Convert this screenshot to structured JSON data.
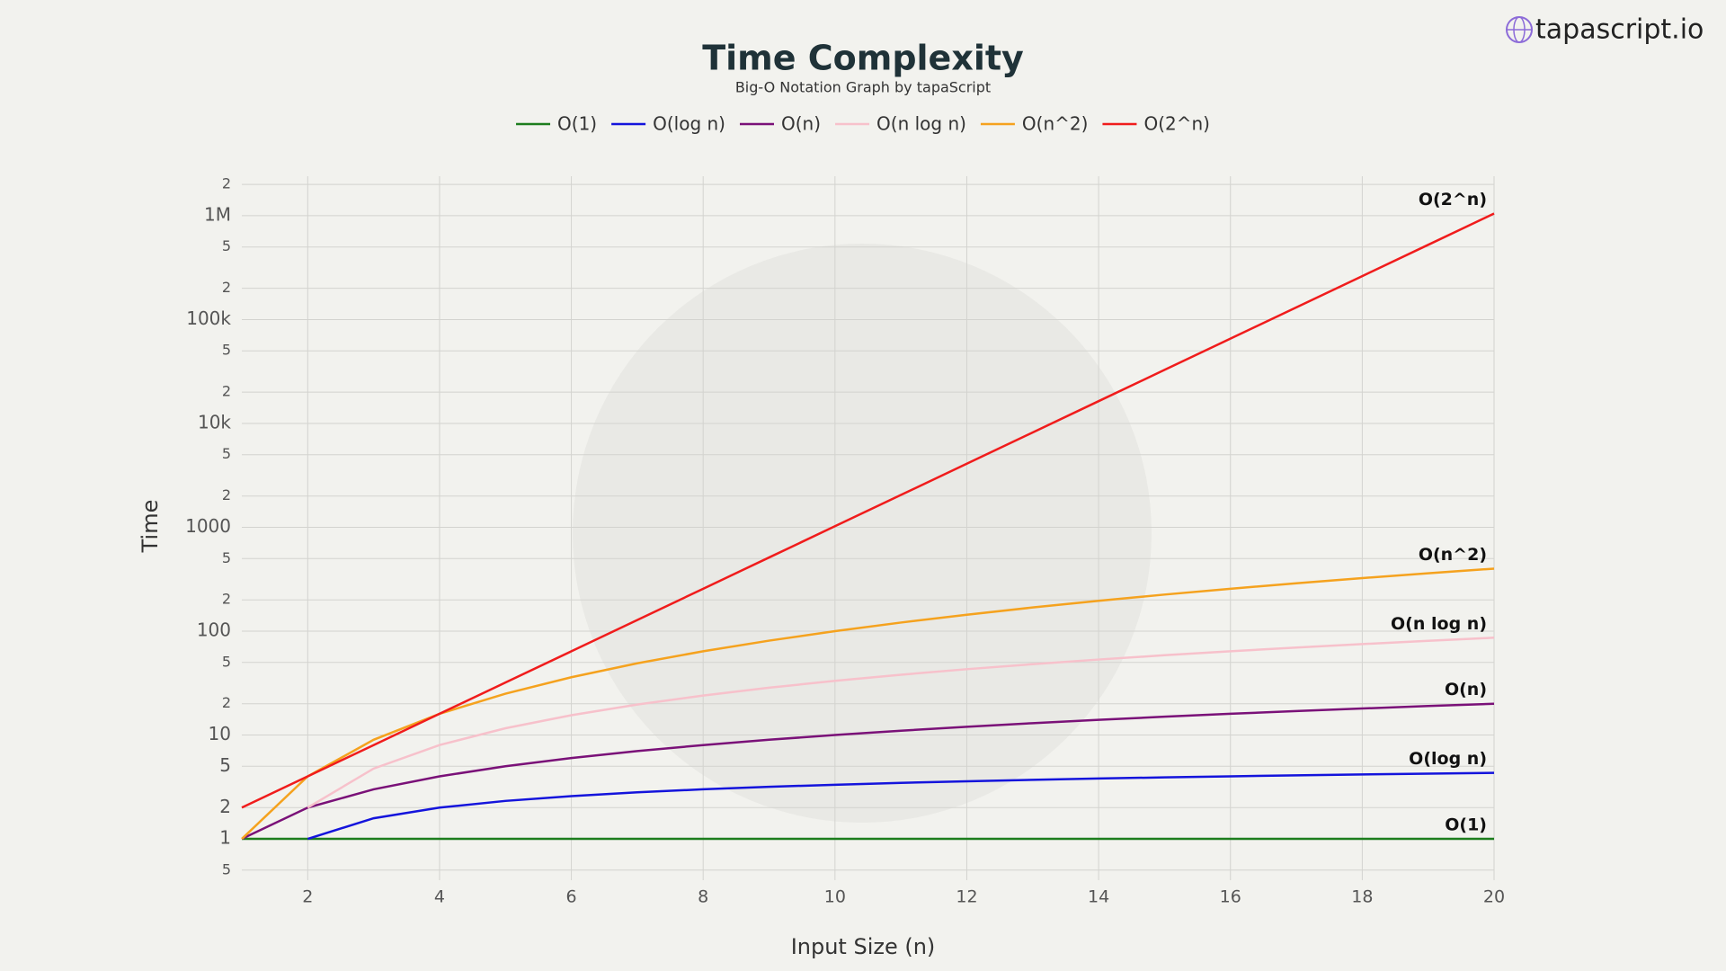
{
  "brand": "tapascript.io",
  "chart_data": {
    "type": "line",
    "title": "Time Complexity",
    "subtitle": "Big-O Notation Graph by tapaScript",
    "x_label": "Input Size (n)",
    "y_label": "Time",
    "log_y": true,
    "grid": true,
    "legend": "top",
    "x": [
      1,
      2,
      3,
      4,
      5,
      6,
      7,
      8,
      9,
      10,
      11,
      12,
      13,
      14,
      15,
      16,
      17,
      18,
      19,
      20
    ],
    "xlim": [
      1,
      20
    ],
    "xticks": [
      2,
      4,
      6,
      8,
      10,
      12,
      14,
      16,
      18,
      20
    ],
    "ylim": [
      0.4,
      2400000
    ],
    "yticks": [
      {
        "value": 0.5,
        "label": "5"
      },
      1,
      2,
      5,
      10,
      {
        "value": 20,
        "label": "2"
      },
      {
        "value": 50,
        "label": "5"
      },
      100,
      {
        "value": 200,
        "label": "2"
      },
      {
        "value": 500,
        "label": "5"
      },
      1000,
      {
        "value": 2000,
        "label": "2"
      },
      {
        "value": 5000,
        "label": "5"
      },
      {
        "value": 10000,
        "label": "10k"
      },
      {
        "value": 20000,
        "label": "2"
      },
      {
        "value": 50000,
        "label": "5"
      },
      {
        "value": 100000,
        "label": "100k"
      },
      {
        "value": 200000,
        "label": "2"
      },
      {
        "value": 500000,
        "label": "5"
      },
      {
        "value": 1000000,
        "label": "1M"
      },
      {
        "value": 2000000,
        "label": "2"
      }
    ],
    "series": [
      {
        "name": "O(1)",
        "color": "#1d7d1d",
        "values": [
          1,
          1,
          1,
          1,
          1,
          1,
          1,
          1,
          1,
          1,
          1,
          1,
          1,
          1,
          1,
          1,
          1,
          1,
          1,
          1
        ]
      },
      {
        "name": "O(log n)",
        "color": "#1414dc",
        "values": [
          null,
          1,
          1.58,
          2,
          2.32,
          2.58,
          2.81,
          3,
          3.17,
          3.32,
          3.46,
          3.58,
          3.7,
          3.81,
          3.91,
          4,
          4.09,
          4.17,
          4.25,
          4.32
        ]
      },
      {
        "name": "O(n)",
        "color": "#7a1178",
        "values": [
          1,
          2,
          3,
          4,
          5,
          6,
          7,
          8,
          9,
          10,
          11,
          12,
          13,
          14,
          15,
          16,
          17,
          18,
          19,
          20
        ]
      },
      {
        "name": "O(n log n)",
        "color": "#f7c1cb",
        "values": [
          null,
          2,
          4.75,
          8,
          11.61,
          15.51,
          19.65,
          24,
          28.53,
          33.22,
          38.05,
          43.02,
          48.11,
          53.3,
          58.6,
          64,
          69.49,
          75.06,
          80.71,
          86.44
        ]
      },
      {
        "name": "O(n^2)",
        "color": "#f5a21e",
        "values": [
          1,
          4,
          9,
          16,
          25,
          36,
          49,
          64,
          81,
          100,
          121,
          144,
          169,
          196,
          225,
          256,
          289,
          324,
          361,
          400
        ]
      },
      {
        "name": "O(2^n)",
        "color": "#f01c1c",
        "values": [
          2,
          4,
          8,
          16,
          32,
          64,
          128,
          256,
          512,
          1024,
          2048,
          4096,
          8192,
          16384,
          32768,
          65536,
          131072,
          262144,
          524288,
          1048576
        ]
      }
    ]
  }
}
